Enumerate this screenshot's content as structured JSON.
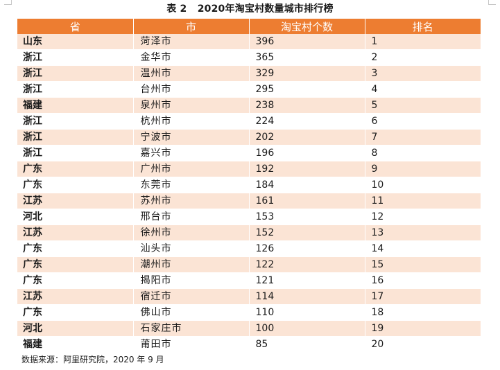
{
  "caption": {
    "label": "表 2",
    "title": "2020年淘宝村数量城市排行榜"
  },
  "table": {
    "headers": [
      "省",
      "市",
      "淘宝村个数",
      "排名"
    ],
    "rows": [
      [
        "山东",
        "菏泽市",
        "396",
        "1"
      ],
      [
        "浙江",
        "金华市",
        "365",
        "2"
      ],
      [
        "浙江",
        "温州市",
        "329",
        "3"
      ],
      [
        "浙江",
        "台州市",
        "295",
        "4"
      ],
      [
        "福建",
        "泉州市",
        "238",
        "5"
      ],
      [
        "浙江",
        "杭州市",
        "224",
        "6"
      ],
      [
        "浙江",
        "宁波市",
        "202",
        "7"
      ],
      [
        "浙江",
        "嘉兴市",
        "196",
        "8"
      ],
      [
        "广东",
        "广州市",
        "192",
        "9"
      ],
      [
        "广东",
        "东莞市",
        "184",
        "10"
      ],
      [
        "江苏",
        "苏州市",
        "161",
        "11"
      ],
      [
        "河北",
        "邢台市",
        "153",
        "12"
      ],
      [
        "江苏",
        "徐州市",
        "152",
        "13"
      ],
      [
        "广东",
        "汕头市",
        "126",
        "14"
      ],
      [
        "广东",
        "潮州市",
        "122",
        "15"
      ],
      [
        "广东",
        "揭阳市",
        "121",
        "16"
      ],
      [
        "江苏",
        "宿迁市",
        "114",
        "17"
      ],
      [
        "广东",
        "佛山市",
        "110",
        "18"
      ],
      [
        "河北",
        "石家庄市",
        "100",
        "19"
      ],
      [
        "福建",
        "莆田市",
        "85",
        "20"
      ]
    ]
  },
  "source_note": "数据来源：阿里研究院，2020 年 9 月",
  "colors": {
    "header_bg": "#ed7d31",
    "stripe_bg": "#fbe4d5"
  }
}
